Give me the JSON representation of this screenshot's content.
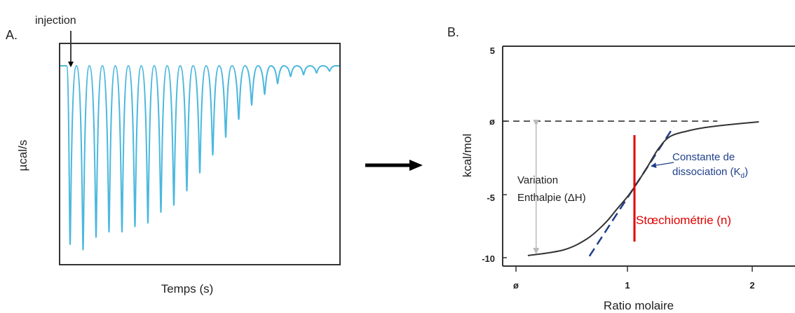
{
  "panel_a": {
    "letter": "A.",
    "annotation": "injection",
    "xlabel": "Temps (s)",
    "ylabel": "µcal/s"
  },
  "panel_b": {
    "letter": "B.",
    "xlabel": "Ratio molaire",
    "ylabel": "kcal/mol",
    "enthalpy_label_line1": "Variation",
    "enthalpy_label_line2": "Enthalpie (ΔH)",
    "kd_label_line1": "Constante de",
    "kd_label_line2_prefix": "dissociation (K",
    "kd_label_line2_sub": "d",
    "kd_label_line2_suffix": ")",
    "stoich_label": "Stœchiométrie (n)",
    "y_tick_labels": [
      "5",
      "ø",
      "-5",
      "-10"
    ],
    "x_tick_labels": [
      "ø",
      "1",
      "2"
    ]
  },
  "colors": {
    "thermogram": "#4cb8de",
    "fit_curve": "#333333",
    "tangent": "#1f3f8a",
    "stoichiometry_line": "#e00000",
    "kd_text": "#1f3f8a",
    "arrow": "#000000",
    "range_arrow": "#bbbbbb"
  },
  "chart_data": [
    {
      "type": "line",
      "xlabel": "Temps (s)",
      "ylabel": "µcal/s",
      "baseline": 0,
      "peak_depths": [
        1.0,
        1.03,
        0.96,
        0.93,
        0.93,
        0.9,
        0.88,
        0.82,
        0.78,
        0.7,
        0.6,
        0.5,
        0.4,
        0.3,
        0.22,
        0.16,
        0.1,
        0.06,
        0.05,
        0.04,
        0.03
      ],
      "annotation": "injection"
    },
    {
      "type": "line",
      "xlabel": "Ratio molaire",
      "ylabel": "kcal/mol",
      "xlim": [
        0,
        2.3
      ],
      "ylim": [
        -10.5,
        5
      ],
      "x_ticks": [
        0,
        1,
        2
      ],
      "y_ticks": [
        5,
        0,
        -5,
        -10
      ],
      "reference_line_y": 0,
      "stoichiometry_x": 1,
      "series": [
        {
          "x": [
            0.1,
            0.4,
            0.6,
            0.75,
            0.85,
            0.95,
            1.0,
            1.1,
            1.2,
            1.3,
            1.45,
            1.6,
            1.8,
            2.05
          ],
          "y": [
            -9.6,
            -9.2,
            -8.4,
            -7.3,
            -6.3,
            -5.3,
            -4.7,
            -3.4,
            -2.0,
            -1.1,
            -0.7,
            -0.45,
            -0.25,
            -0.05
          ]
        }
      ]
    }
  ]
}
